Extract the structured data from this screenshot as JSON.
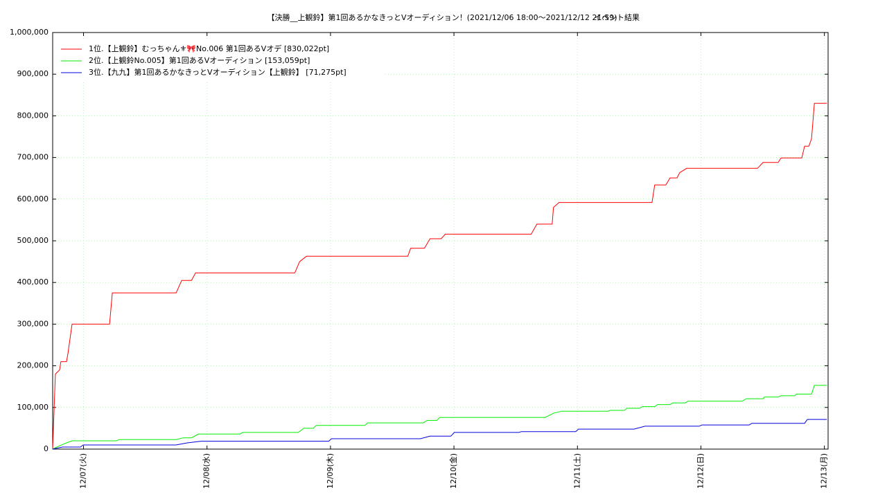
{
  "chart_data": {
    "type": "line",
    "title": "【決勝__上観鈴】第1回あるかなきっとVオーディション！(2021/12/06 18:00〜2021/12/12 21:59)",
    "subtitle": "イベント結果",
    "xlim": [
      0.75,
      7.03
    ],
    "xticks": [
      {
        "value": 1,
        "label": "12/07(火)"
      },
      {
        "value": 2,
        "label": "12/08(水)"
      },
      {
        "value": 3,
        "label": "12/09(木)"
      },
      {
        "value": 4,
        "label": "12/10(金)"
      },
      {
        "value": 5,
        "label": "12/11(土)"
      },
      {
        "value": 6,
        "label": "12/12(日)"
      },
      {
        "value": 7,
        "label": "12/13(月)"
      }
    ],
    "ylim": [
      0,
      1000000
    ],
    "yticks": [
      0,
      {
        "value": 100000,
        "label": "100,000"
      },
      {
        "value": 200000,
        "label": "200,000"
      },
      {
        "value": 300000,
        "label": "300,000"
      },
      {
        "value": 400000,
        "label": "400,000"
      },
      {
        "value": 500000,
        "label": "500,000"
      },
      {
        "value": 600000,
        "label": "600,000"
      },
      {
        "value": 700000,
        "label": "700,000"
      },
      {
        "value": 800000,
        "label": "800,000"
      },
      {
        "value": 900000,
        "label": "900,000"
      },
      {
        "value": 1000000,
        "label": "1,000,000"
      }
    ],
    "grid": true,
    "legend": "upper-left",
    "series": [
      {
        "name": "1位.【上観鈴】むっちゃん⚜🎀No.006 第1回あるVオデ [830,022pt]",
        "color": "#ff0000",
        "x": [
          0.75,
          0.772,
          0.806,
          0.817,
          0.862,
          0.874,
          0.907,
          1.211,
          1.233,
          1.75,
          1.795,
          1.874,
          1.907,
          2.711,
          2.75,
          2.806,
          3.626,
          3.649,
          3.761,
          3.806,
          3.896,
          3.93,
          4.626,
          4.671,
          4.795,
          4.806,
          4.851,
          5.604,
          5.626,
          5.716,
          5.75,
          5.806,
          5.829,
          5.885,
          6.458,
          6.503,
          6.626,
          6.649,
          6.817,
          6.84,
          6.874,
          6.896,
          6.919,
          7.02
        ],
        "values": [
          0,
          180000,
          190000,
          210000,
          210000,
          230000,
          300000,
          300000,
          375000,
          375000,
          405000,
          405000,
          423000,
          423000,
          450000,
          463000,
          463000,
          482000,
          482000,
          505000,
          505000,
          516000,
          516000,
          540000,
          540000,
          580000,
          592000,
          592000,
          634000,
          634000,
          651000,
          651000,
          664000,
          674000,
          674000,
          688000,
          688000,
          699000,
          699000,
          727000,
          727000,
          745000,
          830022,
          830022
        ]
      },
      {
        "name": "2位.【上観鈴No.005】第1回あるVオーディション [153,059pt]",
        "color": "#00ee00",
        "x": [
          0.75,
          0.806,
          0.862,
          0.907,
          1.267,
          1.289,
          1.75,
          1.806,
          1.874,
          1.93,
          2.267,
          2.289,
          2.739,
          2.784,
          2.862,
          2.885,
          3.278,
          3.301,
          3.75,
          3.784,
          3.862,
          3.885,
          4.739,
          4.806,
          4.874,
          5.245,
          5.267,
          5.38,
          5.402,
          5.503,
          5.526,
          5.627,
          5.649,
          5.75,
          5.773,
          5.874,
          5.896,
          6.334,
          6.368,
          6.503,
          6.514,
          6.626,
          6.649,
          6.761,
          6.773,
          6.896,
          6.919,
          7.02
        ],
        "values": [
          0,
          8000,
          15000,
          20000,
          20000,
          23000,
          23000,
          27000,
          27000,
          36000,
          36000,
          40000,
          40000,
          50000,
          50000,
          57000,
          57000,
          63000,
          63000,
          69000,
          69000,
          76000,
          76000,
          86000,
          91000,
          91000,
          93000,
          93000,
          98000,
          98000,
          102000,
          102000,
          107000,
          107000,
          111000,
          111000,
          115000,
          115000,
          121000,
          121000,
          125000,
          125000,
          128000,
          128000,
          132000,
          132000,
          153059,
          153059
        ]
      },
      {
        "name": "3位.【九九】第1回あるかなきっとVオーディション【上観鈴】 [71,275pt]",
        "color": "#0000dd",
        "x": [
          0.75,
          0.829,
          0.975,
          0.997,
          1.75,
          1.84,
          1.952,
          2.986,
          3.008,
          3.728,
          3.806,
          3.975,
          4.003,
          4.525,
          4.548,
          4.986,
          5.008,
          5.458,
          5.548,
          5.986,
          6.008,
          6.39,
          6.413,
          6.84,
          6.862,
          7.02
        ],
        "values": [
          0,
          5000,
          5000,
          10000,
          10000,
          15000,
          19000,
          19000,
          25000,
          25000,
          31000,
          31000,
          40000,
          40000,
          42000,
          42000,
          48000,
          48000,
          55000,
          55000,
          58000,
          58000,
          62000,
          62000,
          71275,
          71275
        ]
      }
    ]
  }
}
